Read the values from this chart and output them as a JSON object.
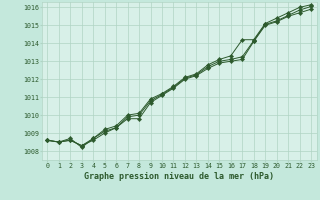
{
  "bg_color": "#c4e8dc",
  "plot_bg_color": "#d8f0e8",
  "grid_color": "#b0d4c4",
  "line_color": "#2d5a2d",
  "marker_color": "#2d5a2d",
  "title": "Graphe pression niveau de la mer (hPa)",
  "ylim": [
    1007.5,
    1016.3
  ],
  "xlim": [
    -0.5,
    23.5
  ],
  "yticks": [
    1008,
    1009,
    1010,
    1011,
    1012,
    1013,
    1014,
    1015,
    1016
  ],
  "xticks": [
    0,
    1,
    2,
    3,
    4,
    5,
    6,
    7,
    8,
    9,
    10,
    11,
    12,
    13,
    14,
    15,
    16,
    17,
    18,
    19,
    20,
    21,
    22,
    23
  ],
  "series1": [
    1008.6,
    1008.5,
    1008.6,
    1008.3,
    1008.6,
    1009.0,
    1009.3,
    1009.8,
    1009.8,
    1010.7,
    1011.1,
    1011.5,
    1012.0,
    1012.2,
    1012.6,
    1012.9,
    1013.0,
    1013.1,
    1014.1,
    1015.0,
    1015.2,
    1015.5,
    1015.7,
    1015.9
  ],
  "series2": [
    1008.6,
    1008.5,
    1008.6,
    1008.3,
    1008.7,
    1009.1,
    1009.3,
    1009.9,
    1010.0,
    1010.8,
    1011.15,
    1011.55,
    1012.05,
    1012.25,
    1012.7,
    1013.0,
    1013.1,
    1013.25,
    1014.15,
    1015.05,
    1015.25,
    1015.55,
    1015.85,
    1016.05
  ],
  "series3": [
    1008.6,
    1008.5,
    1008.7,
    1008.2,
    1008.7,
    1009.2,
    1009.4,
    1010.0,
    1010.1,
    1010.9,
    1011.2,
    1011.6,
    1012.1,
    1012.3,
    1012.8,
    1013.1,
    1013.3,
    1014.2,
    1014.2,
    1015.1,
    1015.4,
    1015.7,
    1016.0,
    1016.15
  ]
}
